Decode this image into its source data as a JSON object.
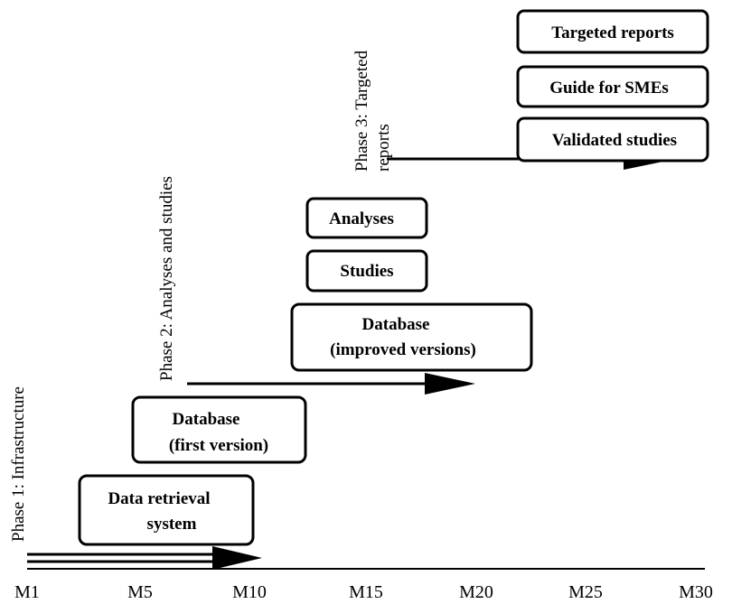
{
  "axis_labels": [
    "M1",
    "M5",
    "M10",
    "M15",
    "M20",
    "M25",
    "M30"
  ],
  "phases": [
    {
      "lines": [
        "Phase 1: Infrastructure"
      ]
    },
    {
      "lines": [
        "Phase 2: Analyses and studies"
      ]
    },
    {
      "lines": [
        "Phase 3: Targeted",
        "reports"
      ]
    }
  ],
  "boxes": [
    {
      "lines": [
        "Data retrieval",
        "system"
      ]
    },
    {
      "lines": [
        "Database",
        "(first version)"
      ]
    },
    {
      "lines": [
        "Database",
        "(improved versions)"
      ]
    },
    {
      "lines": [
        "Studies"
      ]
    },
    {
      "lines": [
        "Analyses"
      ]
    },
    {
      "lines": [
        "Validated studies"
      ]
    },
    {
      "lines": [
        "Guide for SMEs"
      ]
    },
    {
      "lines": [
        "Targeted reports"
      ]
    }
  ]
}
